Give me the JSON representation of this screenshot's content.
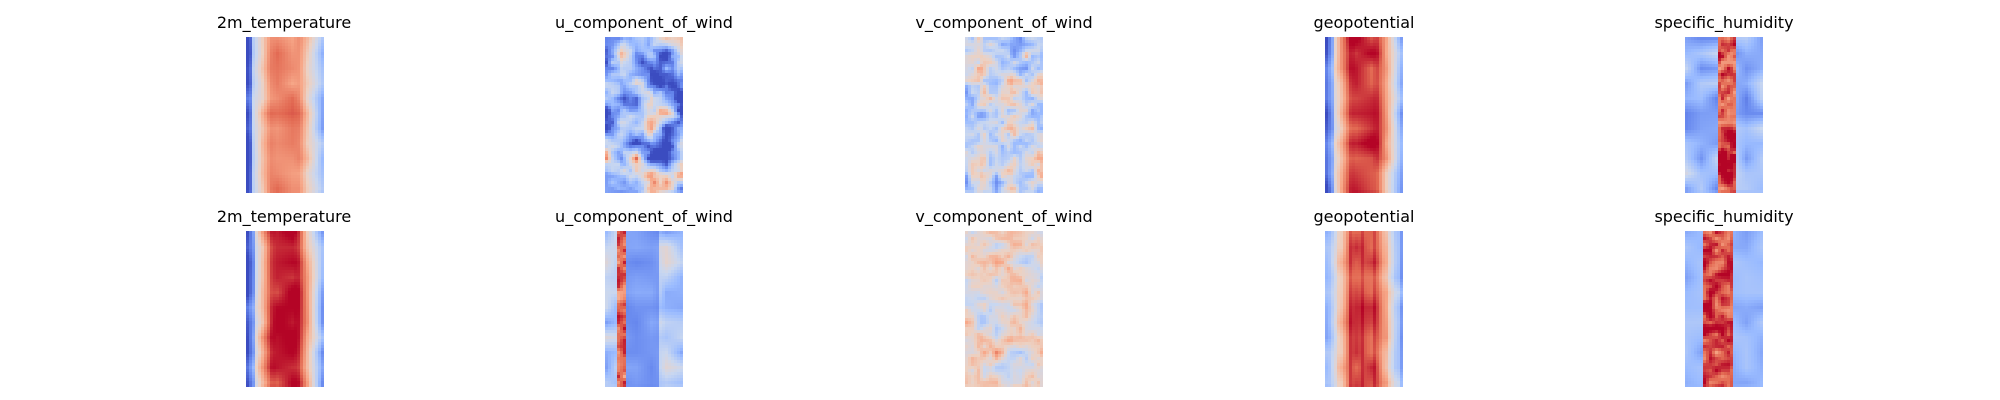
{
  "figure": {
    "colormap": "coolwarm",
    "colormap_stops": [
      "#3b4cc0",
      "#6788ee",
      "#9abbff",
      "#c9d7f0",
      "#edd1c2",
      "#f7a889",
      "#e26952",
      "#b40426"
    ]
  },
  "rows": [
    {
      "panels": [
        {
          "title": "2m_temperature",
          "pattern": "warm-center",
          "seed": 11
        },
        {
          "title": "u_component_of_wind",
          "pattern": "mixed-blue",
          "seed": 23
        },
        {
          "title": "v_component_of_wind",
          "pattern": "neutral-noise",
          "seed": 37
        },
        {
          "title": "geopotential",
          "pattern": "warm-center-strong",
          "seed": 41
        },
        {
          "title": "specific_humidity",
          "pattern": "cool-edges-warm-streak",
          "seed": 53
        }
      ]
    },
    {
      "panels": [
        {
          "title": "2m_temperature",
          "pattern": "warm-center-strong",
          "seed": 61
        },
        {
          "title": "u_component_of_wind",
          "pattern": "blue-band",
          "seed": 73
        },
        {
          "title": "v_component_of_wind",
          "pattern": "neutral-warm",
          "seed": 89
        },
        {
          "title": "geopotential",
          "pattern": "warm-center-striped",
          "seed": 97
        },
        {
          "title": "specific_humidity",
          "pattern": "cool-edges-warm-band",
          "seed": 103
        }
      ]
    }
  ]
}
